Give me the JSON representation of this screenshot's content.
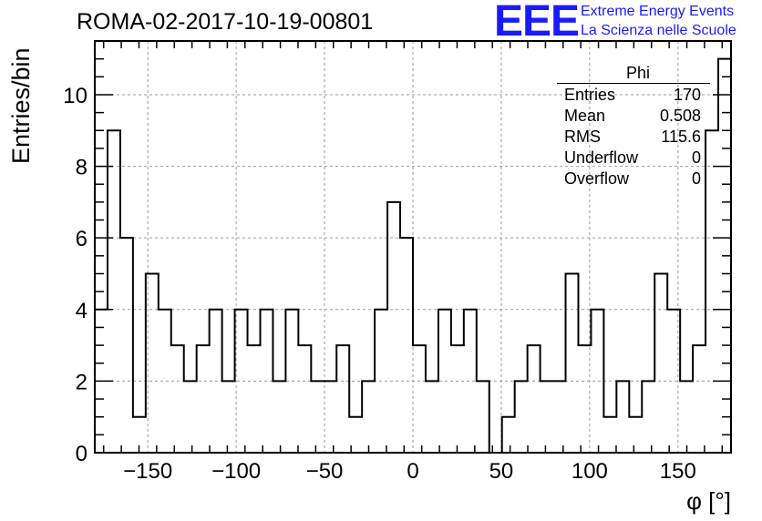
{
  "header": {
    "title": "ROMA-02-2017-10-19-00801",
    "logo_text": "EEE",
    "logo_line1": "Extreme Energy Events",
    "logo_line2": "La Scienza nelle Scuole"
  },
  "stats_box": {
    "title": "Phi",
    "rows": [
      {
        "label": "Entries",
        "value": "170"
      },
      {
        "label": "Mean",
        "value": "0.508"
      },
      {
        "label": "RMS",
        "value": "115.6"
      },
      {
        "label": "Underflow",
        "value": "0"
      },
      {
        "label": "Overflow",
        "value": "0"
      }
    ]
  },
  "colors": {
    "line": "#000000",
    "grid": "#999999",
    "logo": "#1a1aff"
  },
  "chart_data": {
    "type": "histogram",
    "title": "ROMA-02-2017-10-19-00801",
    "xlabel": "φ [°]",
    "ylabel": "Entries/bin",
    "xlim": [
      -180,
      180
    ],
    "ylim": [
      0,
      11.5
    ],
    "bin_width": 7.2,
    "values": [
      4,
      9,
      6,
      1,
      5,
      4,
      3,
      2,
      3,
      4,
      2,
      4,
      3,
      4,
      2,
      4,
      3,
      2,
      2,
      3,
      1,
      2,
      4,
      7,
      6,
      3,
      2,
      4,
      3,
      4,
      2,
      0,
      1,
      2,
      3,
      2,
      2,
      5,
      3,
      4,
      1,
      2,
      1,
      2,
      5,
      4,
      2,
      3,
      9,
      11
    ],
    "xticks": [
      -150,
      -100,
      -50,
      0,
      50,
      100,
      150
    ],
    "xtick_labels": [
      "−150",
      "−100",
      "−50",
      "0",
      "50",
      "100",
      "150"
    ],
    "yticks": [
      0,
      2,
      4,
      6,
      8,
      10
    ],
    "ytick_labels": [
      "0",
      "2",
      "4",
      "6",
      "8",
      "10"
    ],
    "grid": true
  }
}
